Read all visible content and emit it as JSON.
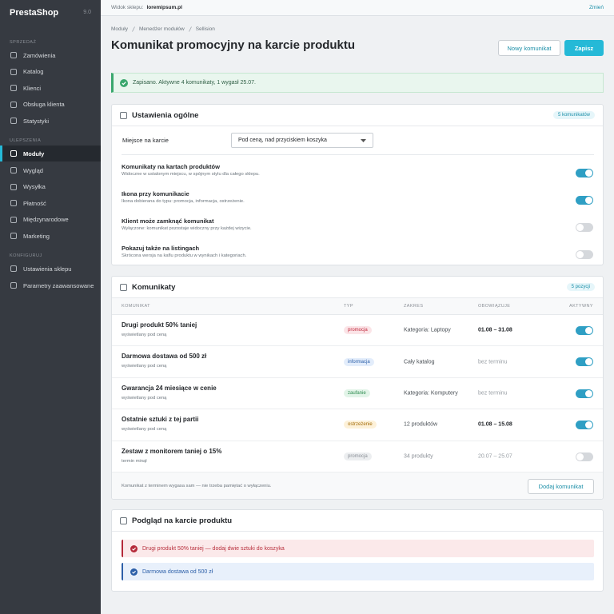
{
  "sidebar": {
    "brand": "PrestaShop",
    "version": "9.0",
    "sections": [
      {
        "title": "SPRZEDAŻ",
        "items": [
          "Zamówienia",
          "Katalog",
          "Klienci",
          "Obsługa klienta",
          "Statystyki"
        ]
      },
      {
        "title": "ULEPSZENIA",
        "items": [
          "Moduły",
          "Wygląd",
          "Wysyłka",
          "Płatność",
          "Międzynarodowe",
          "Marketing"
        ],
        "active": 0
      },
      {
        "title": "KONFIGURUJ",
        "items": [
          "Ustawienia sklepu",
          "Parametry zaawansowane"
        ]
      }
    ]
  },
  "topbar": {
    "label": "Widok sklepu:",
    "shop": "loremipsum.pl",
    "change": "Zmień"
  },
  "breadcrumb": [
    "Moduły",
    "Menedżer modułów",
    "Sellision"
  ],
  "header": {
    "title": "Komunikat promocyjny na karcie produktu",
    "buttons": [
      "Nowy komunikat",
      "Zapisz"
    ]
  },
  "alert": "Zapisano. Aktywne 4 komunikaty, 1 wygasł 25.07.",
  "settings": {
    "title": "Ustawienia ogólne",
    "badge": "5 komunikatów",
    "placement_label": "Miejsce na karcie",
    "placement_value": "Pod ceną, nad przyciskiem koszyka",
    "options": [
      {
        "title": "Komunikaty na kartach produktów",
        "desc": "Widoczne w ustalonym miejscu, w spójnym stylu dla całego sklepu.",
        "on": true
      },
      {
        "title": "Ikona przy komunikacie",
        "desc": "Ikona dobierana do typu: promocja, informacja, ostrzeżenie.",
        "on": true
      },
      {
        "title": "Klient może zamknąć komunikat",
        "desc": "Wyłączone: komunikat pozostaje widoczny przy każdej wizycie.",
        "on": false
      },
      {
        "title": "Pokazuj także na listingach",
        "desc": "Skrócona wersja na kaflu produktu w wynikach i kategoriach.",
        "on": false
      }
    ]
  },
  "messages": {
    "title": "Komunikaty",
    "badge": "5 pozycji",
    "columns": [
      "KOMUNIKAT",
      "TYP",
      "ZAKRES",
      "OBOWIĄZUJE",
      "AKTYWNY"
    ],
    "rows": [
      {
        "title": "Drugi produkt 50% taniej",
        "sub": "wyświetlany pod ceną",
        "type": "promocja",
        "tone": "promo",
        "scope": "Kategoria: Laptopy",
        "dates": "01.08 – 31.08",
        "dated": true,
        "active": true
      },
      {
        "title": "Darmowa dostawa od 500 zł",
        "sub": "wyświetlany pod ceną",
        "type": "informacja",
        "tone": "info",
        "scope": "Cały katalog",
        "dates": "bez terminu",
        "dated": false,
        "active": true
      },
      {
        "title": "Gwarancja 24 miesiące w cenie",
        "sub": "wyświetlany pod ceną",
        "type": "zaufanie",
        "tone": "trust",
        "scope": "Kategoria: Komputery",
        "dates": "bez terminu",
        "dated": false,
        "active": true
      },
      {
        "title": "Ostatnie sztuki z tej partii",
        "sub": "wyświetlany pod ceną",
        "type": "ostrzeżenie",
        "tone": "warn",
        "scope": "12 produktów",
        "dates": "01.08 – 15.08",
        "dated": true,
        "active": true
      },
      {
        "title": "Zestaw z monitorem taniej o 15%",
        "sub": "termin minął",
        "type": "promocja",
        "tone": "expired",
        "scope": "34 produkty",
        "dates": "20.07 – 25.07",
        "dated": false,
        "active": false
      }
    ],
    "footer": "Komunikat z terminem wygasa sam — nie trzeba pamiętać o wyłączeniu.",
    "add": "Dodaj komunikat"
  },
  "preview": {
    "title": "Podgląd na karcie produktu",
    "items": [
      {
        "text": "Drugi produkt 50% taniej — dodaj dwie sztuki do koszyka",
        "tone": "promo"
      },
      {
        "text": "Darmowa dostawa od 500 zł",
        "tone": "info"
      }
    ]
  }
}
